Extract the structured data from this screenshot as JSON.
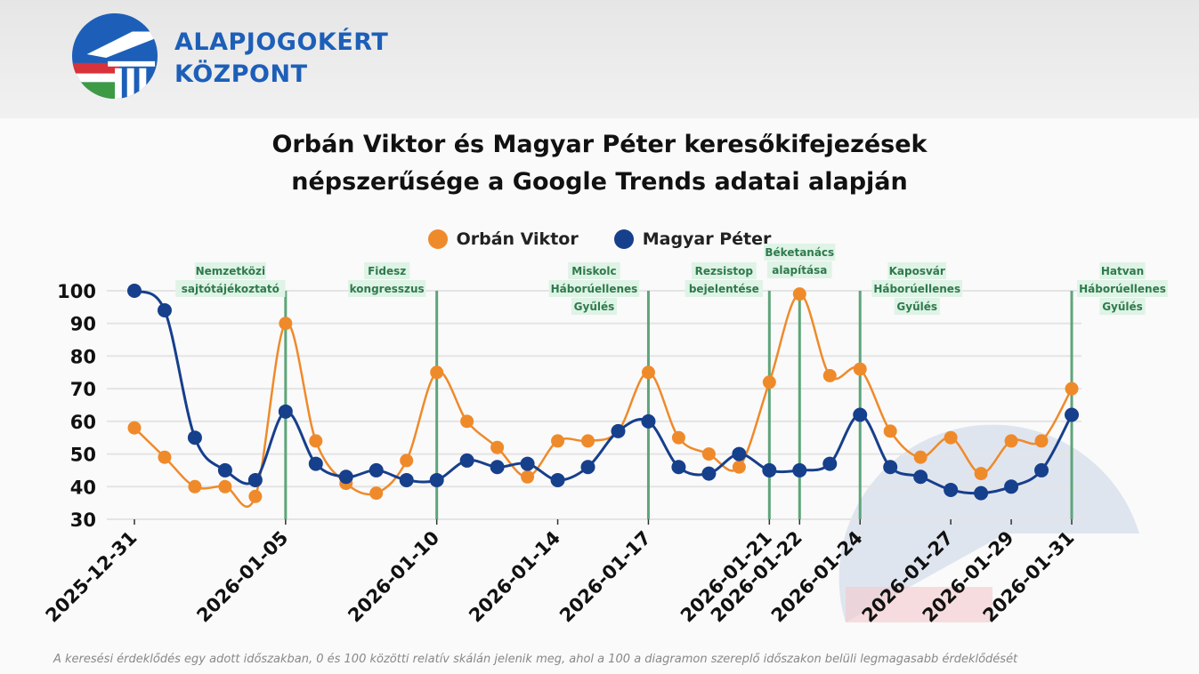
{
  "brand": {
    "line1": "ALAPJOGOKÉRT",
    "line2": "KÖZPONT"
  },
  "title": {
    "line1": "Orbán Viktor és Magyar Péter keresőkifejezések",
    "line2": "népszerűsége a Google Trends adatai alapján"
  },
  "footnote": "A keresési érdeklődés egy adott időszakban, 0 és 100 közötti relatív skálán jelenik meg, ahol a 100 a diagramon szereplő időszakon belüli legmagasabb érdeklődését",
  "colors": {
    "orban": "#ef8a2b",
    "magyar": "#163f8c",
    "event": "#5ea57a",
    "event_bg": "#dff3e6",
    "brand": "#1d5fb8"
  },
  "chart_data": {
    "type": "line",
    "x": [
      "2025-12-31",
      "2026-01-01",
      "2026-01-02",
      "2026-01-03",
      "2026-01-04",
      "2026-01-05",
      "2026-01-06",
      "2026-01-07",
      "2026-01-08",
      "2026-01-09",
      "2026-01-10",
      "2026-01-11",
      "2026-01-12",
      "2026-01-13",
      "2026-01-14",
      "2026-01-15",
      "2026-01-16",
      "2026-01-17",
      "2026-01-18",
      "2026-01-19",
      "2026-01-20",
      "2026-01-21",
      "2026-01-22",
      "2026-01-23",
      "2026-01-24",
      "2026-01-25",
      "2026-01-26",
      "2026-01-27",
      "2026-01-28",
      "2026-01-29",
      "2026-01-30",
      "2026-01-31"
    ],
    "x_tick_labels": [
      "2025-12-31",
      "2026-01-05",
      "2026-01-10",
      "2026-01-14",
      "2026-01-17",
      "2026-01-21",
      "2026-01-22",
      "2026-01-24",
      "2026-01-27",
      "2026-01-29",
      "2026-01-31"
    ],
    "series": [
      {
        "name": "Orbán Viktor",
        "color": "#ef8a2b",
        "values": [
          58,
          49,
          40,
          40,
          37,
          90,
          54,
          41,
          38,
          48,
          75,
          60,
          52,
          43,
          54,
          54,
          57,
          75,
          55,
          50,
          46,
          72,
          99,
          74,
          76,
          57,
          49,
          55,
          44,
          54,
          54,
          70
        ]
      },
      {
        "name": "Magyar Péter",
        "color": "#163f8c",
        "values": [
          100,
          94,
          55,
          45,
          42,
          63,
          47,
          43,
          45,
          42,
          42,
          48,
          46,
          47,
          42,
          46,
          57,
          60,
          46,
          44,
          50,
          45,
          45,
          47,
          62,
          46,
          43,
          39,
          38,
          40,
          45,
          62
        ]
      }
    ],
    "ylim": [
      30,
      100
    ],
    "y_ticks": [
      30,
      40,
      50,
      60,
      70,
      80,
      90,
      100
    ],
    "grid": true,
    "legend": "top-center",
    "events": [
      {
        "date": "2026-01-05",
        "label": [
          "Nemzetközi",
          "sajtótájékoztató"
        ]
      },
      {
        "date": "2026-01-10",
        "label": [
          "Fidesz",
          "kongresszus"
        ]
      },
      {
        "date": "2026-01-17",
        "label": [
          "Miskolc",
          "Háborúellenes",
          "Gyűlés"
        ]
      },
      {
        "date": "2026-01-21",
        "label": [
          "Rezsistop",
          "bejelentése"
        ]
      },
      {
        "date": "2026-01-22",
        "label": [
          "Béketanács",
          "alapítása"
        ]
      },
      {
        "date": "2026-01-24",
        "label": [
          "Kaposvár",
          "Háborúellenes",
          "Gyűlés"
        ]
      },
      {
        "date": "2026-01-31",
        "label": [
          "Hatvan",
          "Háborúellenes",
          "Gyűlés"
        ]
      }
    ]
  }
}
